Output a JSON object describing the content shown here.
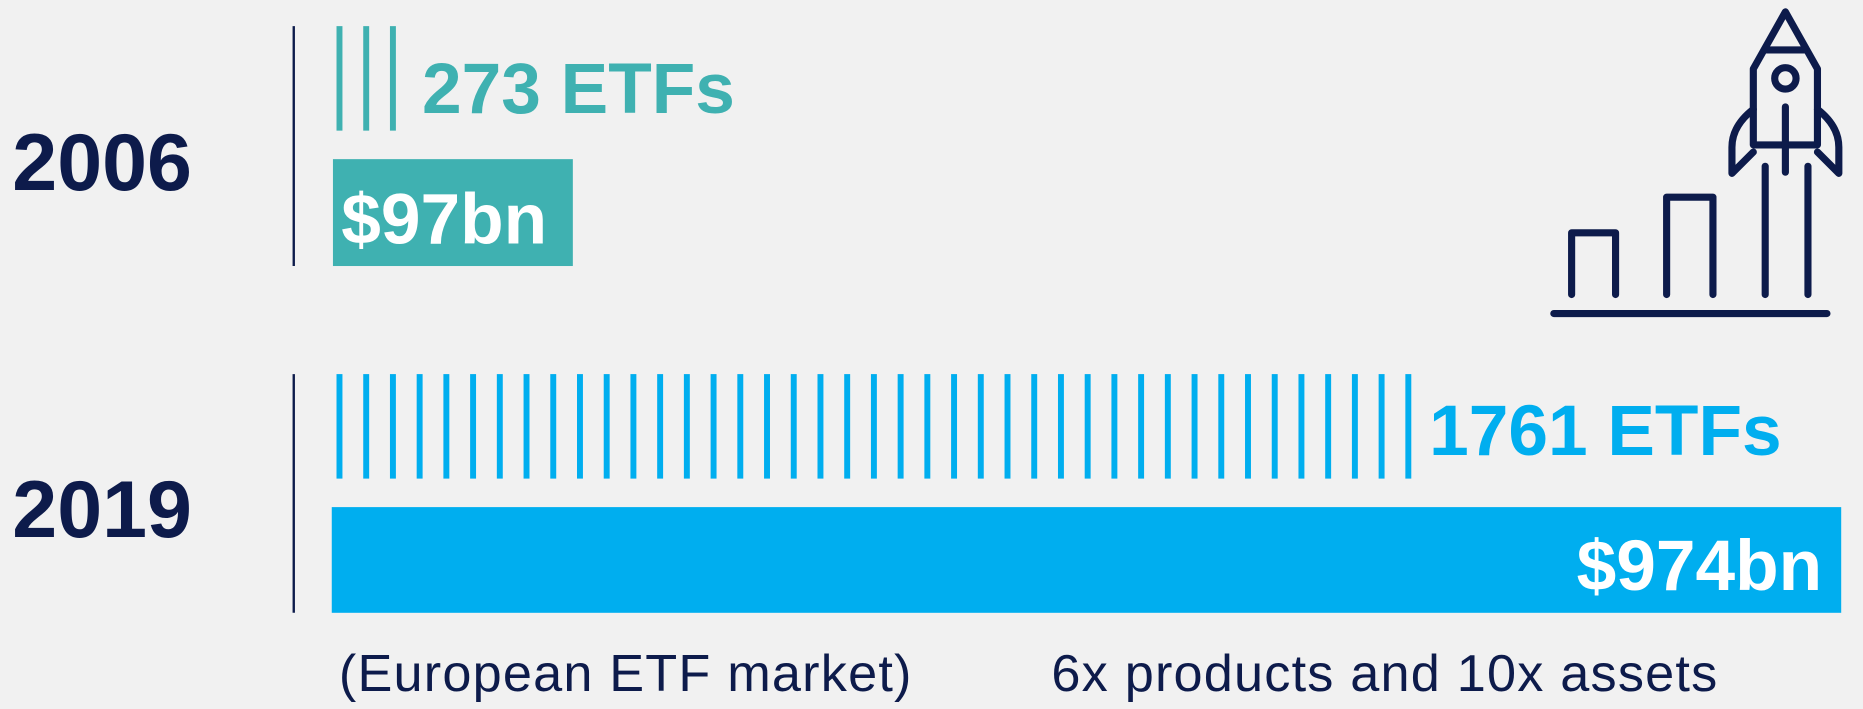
{
  "rows": [
    {
      "year": "2006",
      "products": "273 ETFs",
      "assets": "$97bn"
    },
    {
      "year": "2019",
      "products": "1761 ETFs",
      "assets": "$974bn"
    }
  ],
  "footer": {
    "note": "(European ETF market)",
    "summary": "6x products and 10x assets"
  }
}
